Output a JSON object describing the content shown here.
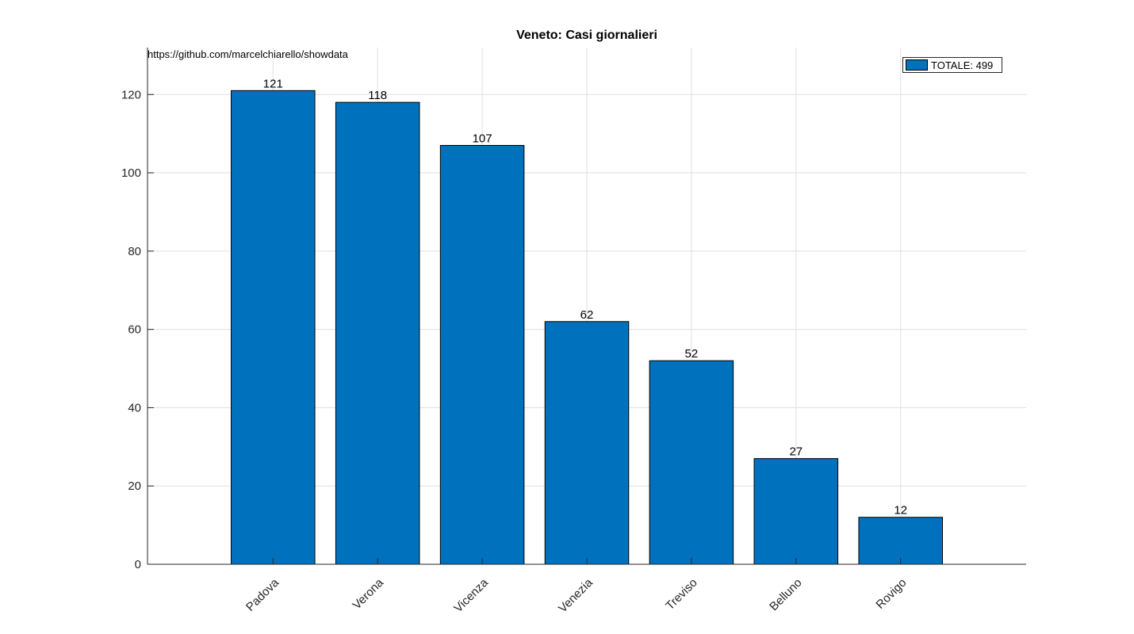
{
  "chart_data": {
    "type": "bar",
    "title": "Veneto: Casi giornalieri",
    "annotation": "https://github.com/marcelchiarello/showdata",
    "categories": [
      "Padova",
      "Verona",
      "Vicenza",
      "Venezia",
      "Treviso",
      "Belluno",
      "Rovigo"
    ],
    "series": [
      {
        "name": "TOTALE: 499",
        "values": [
          121,
          118,
          107,
          62,
          52,
          27,
          12
        ]
      }
    ],
    "ylim": [
      0,
      132
    ],
    "yticks": [
      0,
      20,
      40,
      60,
      80,
      100,
      120
    ],
    "grid": true,
    "legend": "top-right",
    "bar_color": "#0072BD",
    "xlabel": "",
    "ylabel": ""
  }
}
